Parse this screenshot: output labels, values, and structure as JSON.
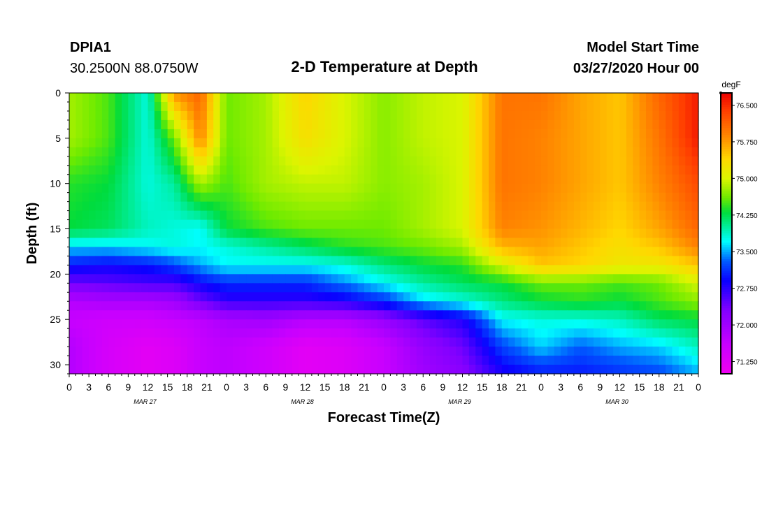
{
  "header": {
    "station": "DPIA1",
    "coords": "30.2500N 88.0750W",
    "title": "2-D Temperature at Depth",
    "model_label": "Model Start Time",
    "model_time": "03/27/2020 Hour 00"
  },
  "chart_data": {
    "type": "heatmap",
    "title": "2-D Temperature at Depth",
    "xlabel": "Forecast Time(Z)",
    "ylabel": "Depth (ft)",
    "xlim": [
      0,
      96
    ],
    "ylim": [
      31,
      0
    ],
    "x_tick_labels": [
      "0",
      "3",
      "6",
      "9",
      "12",
      "15",
      "18",
      "21",
      "0",
      "3",
      "6",
      "9",
      "12",
      "15",
      "18",
      "21",
      "0",
      "3",
      "6",
      "9",
      "12",
      "15",
      "18",
      "21",
      "0",
      "3",
      "6",
      "9",
      "12",
      "15",
      "18",
      "21",
      "0"
    ],
    "date_labels": [
      {
        "text": "MAR 27",
        "hour": 12
      },
      {
        "text": "MAR 28",
        "hour": 36
      },
      {
        "text": "MAR 29",
        "hour": 60
      },
      {
        "text": "MAR 30",
        "hour": 84
      }
    ],
    "y_ticks": [
      0,
      5,
      10,
      15,
      20,
      25,
      30
    ],
    "colorbar": {
      "unit": "degF",
      "range": [
        71.0,
        76.75
      ],
      "labels": [
        "76.500",
        "75.750",
        "75.000",
        "74.250",
        "73.500",
        "72.750",
        "72.000",
        "71.250"
      ]
    },
    "time_hours": [
      0,
      6,
      12,
      16,
      20,
      24,
      30,
      36,
      42,
      48,
      54,
      60,
      66,
      72,
      78,
      84,
      90,
      96
    ],
    "depth_ft": [
      0,
      5,
      10,
      15,
      17,
      19,
      21,
      23,
      25,
      28,
      31
    ],
    "temperature_degF": [
      [
        74.8,
        74.5,
        73.8,
        75.8,
        76.1,
        74.6,
        74.8,
        75.4,
        75.0,
        74.7,
        74.9,
        75.0,
        76.0,
        76.0,
        75.7,
        75.5,
        76.1,
        76.6
      ],
      [
        74.8,
        74.5,
        73.8,
        74.6,
        75.9,
        74.6,
        74.8,
        75.3,
        75.0,
        74.7,
        74.9,
        75.0,
        76.0,
        75.9,
        75.7,
        75.5,
        76.0,
        76.6
      ],
      [
        74.4,
        74.3,
        73.8,
        74.0,
        74.8,
        74.5,
        74.8,
        74.9,
        74.9,
        74.7,
        74.8,
        75.0,
        76.0,
        75.9,
        75.7,
        75.5,
        75.9,
        76.3
      ],
      [
        74.3,
        74.2,
        73.9,
        73.8,
        73.7,
        74.3,
        74.5,
        74.6,
        74.6,
        74.6,
        74.8,
        75.0,
        75.9,
        75.8,
        75.6,
        75.4,
        75.7,
        76.1
      ],
      [
        73.6,
        73.6,
        73.7,
        73.8,
        73.7,
        73.8,
        74.0,
        74.2,
        74.4,
        74.5,
        74.6,
        74.8,
        75.6,
        75.7,
        75.5,
        75.3,
        75.5,
        75.9
      ],
      [
        73.0,
        72.9,
        73.0,
        73.2,
        73.5,
        73.7,
        73.7,
        73.7,
        73.8,
        74.1,
        74.3,
        74.4,
        75.0,
        75.5,
        75.4,
        75.2,
        75.2,
        75.5
      ],
      [
        72.4,
        72.5,
        72.6,
        72.6,
        72.9,
        73.1,
        73.1,
        73.1,
        73.4,
        73.7,
        74.0,
        74.2,
        74.3,
        74.6,
        74.6,
        74.5,
        74.6,
        75.0
      ],
      [
        71.8,
        71.9,
        71.9,
        72.0,
        72.4,
        72.7,
        72.7,
        72.7,
        72.8,
        73.1,
        73.6,
        73.8,
        74.1,
        74.3,
        74.4,
        74.3,
        74.5,
        74.7
      ],
      [
        71.6,
        71.5,
        71.5,
        71.6,
        71.7,
        71.9,
        72.0,
        71.8,
        71.8,
        72.1,
        72.5,
        72.8,
        73.7,
        73.8,
        73.8,
        73.9,
        74.2,
        74.3
      ],
      [
        71.8,
        71.4,
        71.2,
        71.3,
        71.6,
        71.7,
        71.5,
        71.2,
        71.3,
        71.6,
        72.1,
        72.4,
        73.2,
        73.6,
        73.3,
        73.5,
        73.6,
        73.9
      ],
      [
        71.8,
        71.4,
        71.2,
        71.3,
        71.6,
        71.7,
        71.5,
        71.2,
        71.3,
        71.6,
        72.0,
        72.2,
        72.8,
        73.0,
        73.0,
        73.1,
        73.2,
        73.5
      ]
    ]
  }
}
